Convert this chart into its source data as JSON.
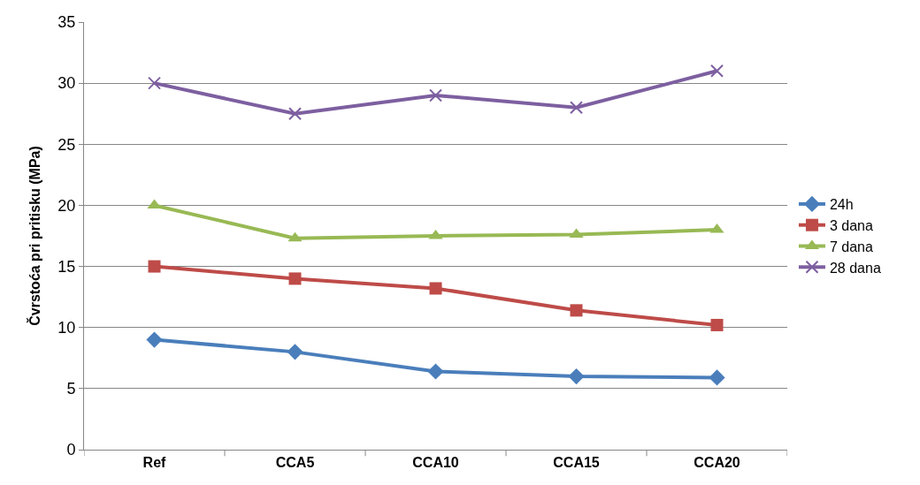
{
  "chart_data": {
    "type": "line",
    "ylabel": "Čvrstoća pri pritisku (MPa)",
    "categories": [
      "Ref",
      "CCA5",
      "CCA10",
      "CCA15",
      "CCA20"
    ],
    "series": [
      {
        "name": "24h",
        "color": "#4a7ebb",
        "marker": "diamond",
        "values": [
          9,
          8,
          6.4,
          6,
          5.9
        ]
      },
      {
        "name": "3 dana",
        "color": "#be4b48",
        "marker": "square",
        "values": [
          15,
          14,
          13.2,
          11.4,
          10.2
        ]
      },
      {
        "name": "7 dana",
        "color": "#98b954",
        "marker": "triangle",
        "values": [
          20,
          17.3,
          17.5,
          17.6,
          18
        ]
      },
      {
        "name": "28 dana",
        "color": "#7d5fa0",
        "marker": "cross",
        "values": [
          30,
          27.5,
          29,
          28,
          31
        ]
      }
    ],
    "ylim": [
      0,
      35
    ],
    "yticks": [
      0,
      5,
      10,
      15,
      20,
      25,
      30,
      35
    ],
    "grid": "y",
    "legend": "right",
    "line_style": "solid"
  }
}
